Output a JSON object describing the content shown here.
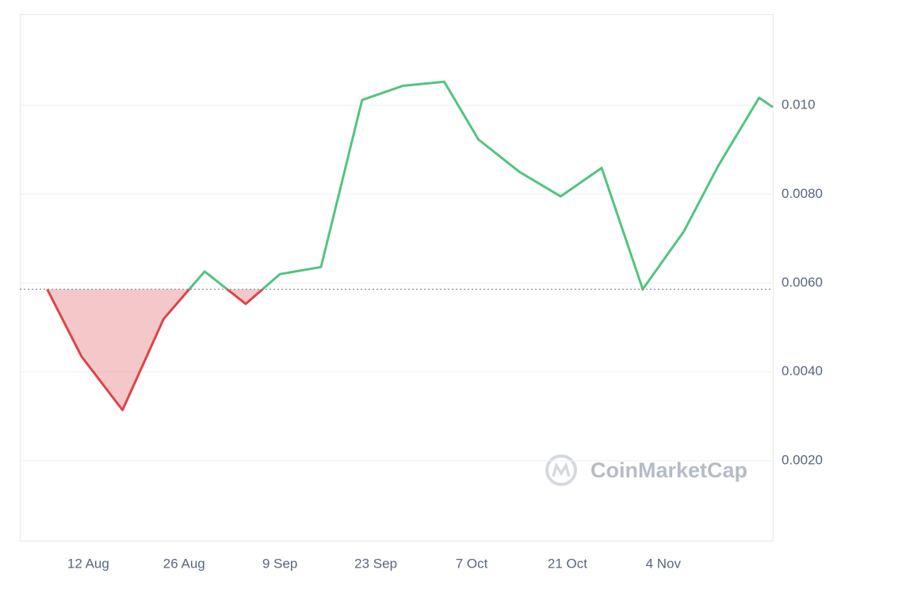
{
  "chart_data": {
    "type": "baseline-line",
    "x": [
      "6 Aug",
      "11 Aug",
      "17 Aug",
      "23 Aug",
      "29 Aug",
      "4 Sep",
      "9 Sep",
      "15 Sep",
      "21 Sep",
      "27 Sep",
      "3 Oct",
      "8 Oct",
      "14 Oct",
      "20 Oct",
      "26 Oct",
      "1 Nov",
      "7 Nov",
      "12 Nov",
      "18 Nov",
      "20 Nov"
    ],
    "values": [
      0.00586,
      0.00435,
      0.00314,
      0.00519,
      0.00626,
      0.00553,
      0.0062,
      0.00636,
      0.01012,
      0.01044,
      0.01053,
      0.00923,
      0.0085,
      0.00795,
      0.00859,
      0.00586,
      0.00716,
      0.00863,
      0.01017,
      0.00996
    ],
    "up_color": "#52c47f",
    "down_color": "#dc4448",
    "xlim": [
      "2 Aug",
      "20 Nov"
    ],
    "xticks": [
      "12 Aug",
      "26 Aug",
      "9 Sep",
      "23 Sep",
      "7 Oct",
      "21 Oct",
      "4 Nov"
    ],
    "ylim": [
      0.0002,
      0.01205
    ],
    "yticks": [
      {
        "value": 0.002,
        "label": "0.0020"
      },
      {
        "value": 0.004,
        "label": "0.0040"
      },
      {
        "value": 0.006,
        "label": "0.0060"
      },
      {
        "value": 0.008,
        "label": "0.0080"
      },
      {
        "value": 0.01,
        "label": "0.010"
      }
    ],
    "grid": true,
    "watermark": "CoinMarketCap"
  }
}
